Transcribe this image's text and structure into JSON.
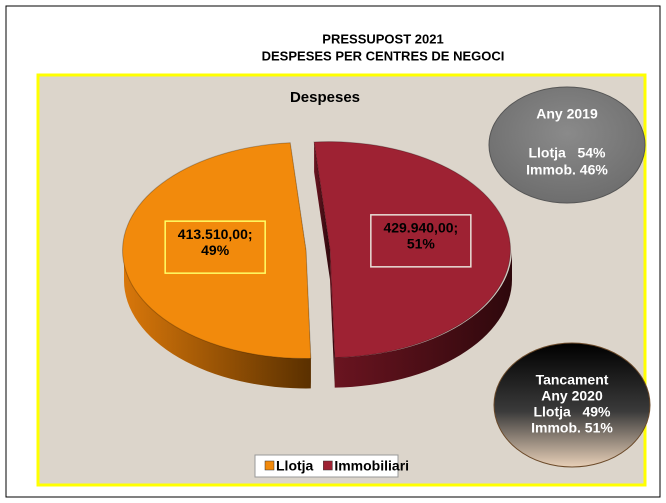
{
  "chart_data": {
    "type": "pie",
    "title": [
      "PRESSUPOST 2021",
      "DESPESES PER CENTRES DE NEGOCI"
    ],
    "subtitle": "Despeses",
    "categories": [
      "Llotja",
      "Immobiliari"
    ],
    "values": [
      413510,
      429940
    ],
    "value_labels": [
      [
        "413.510,00;",
        "49%"
      ],
      [
        "429.940,00;",
        "51%"
      ]
    ],
    "colors": [
      "#f28a0c",
      "#9e2233"
    ],
    "annotations": [
      {
        "lines": [
          "Any 2019",
          "Llotja   54%",
          "Immob. 46%"
        ]
      },
      {
        "lines": [
          "Tancament",
          "Any 2020",
          "Llotja   49%",
          "Immob. 51%"
        ]
      }
    ]
  }
}
